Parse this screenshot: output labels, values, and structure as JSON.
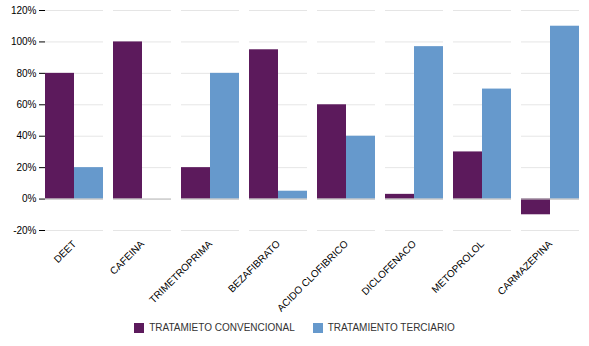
{
  "chart_data": {
    "type": "bar",
    "categories": [
      "DEET",
      "CAFEINA",
      "TRIMETROPRIMA",
      "BEZAFIBRATO",
      "ACIDO CLOFIBRICO",
      "DICLOFENACO",
      "METOPROLOL",
      "CARMAZEPINA"
    ],
    "series": [
      {
        "name": "TRATAMIETO CONVENCIONAL",
        "color": "#5C1A5C",
        "values": [
          80,
          100,
          20,
          95,
          60,
          3,
          30,
          -10
        ]
      },
      {
        "name": "TRATAMIENTO TERCIARIO",
        "color": "#6699CC",
        "values": [
          20,
          0,
          80,
          5,
          40,
          97,
          70,
          110
        ]
      }
    ],
    "ylim": [
      -20,
      120
    ],
    "yticks": [
      {
        "value": -20,
        "label": "-20%"
      },
      {
        "value": 0,
        "label": "0%"
      },
      {
        "value": 20,
        "label": "20%"
      },
      {
        "value": 40,
        "label": "40%"
      },
      {
        "value": 60,
        "label": "60%"
      },
      {
        "value": 80,
        "label": "80%"
      },
      {
        "value": 100,
        "label": "100%"
      },
      {
        "value": 120,
        "label": "120%"
      }
    ],
    "grid": true,
    "legend": "bottom"
  }
}
